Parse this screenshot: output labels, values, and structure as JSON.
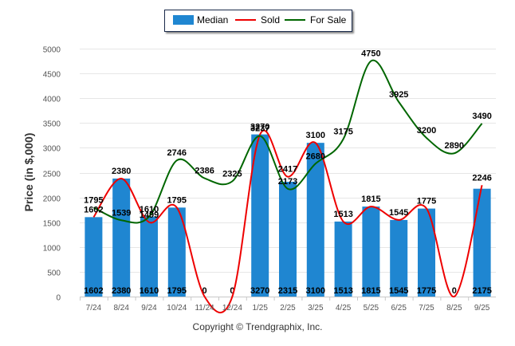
{
  "chart_data": {
    "type": "bar",
    "title": "",
    "xlabel": "",
    "ylabel": "Price (in $,000)",
    "ylim": [
      0,
      5000
    ],
    "yticks": [
      0,
      500,
      1000,
      1500,
      2000,
      2500,
      3000,
      3500,
      4000,
      4500,
      5000
    ],
    "grid": true,
    "legend_position": "top-center",
    "categories": [
      "7/24",
      "8/24",
      "9/24",
      "10/24",
      "11/24",
      "12/24",
      "1/25",
      "2/25",
      "3/25",
      "4/25",
      "5/25",
      "6/25",
      "7/25",
      "8/25",
      "9/25"
    ],
    "series": [
      {
        "name": "Median",
        "type": "bar",
        "color": "#1f86d1",
        "values": [
          1602,
          2380,
          1610,
          1795,
          0,
          0,
          3270,
          2315,
          3100,
          1513,
          1815,
          1545,
          1775,
          0,
          2175
        ]
      },
      {
        "name": "Sold",
        "type": "line",
        "color": "#ee0000",
        "values": [
          1602,
          2380,
          1499,
          1795,
          0,
          0,
          3270,
          2417,
          3100,
          1513,
          1815,
          1545,
          1775,
          0,
          2246
        ]
      },
      {
        "name": "For Sale",
        "type": "line",
        "color": "#006600",
        "values": [
          1795,
          1539,
          1610,
          2746,
          2386,
          2325,
          3237,
          2173,
          2680,
          3175,
          4750,
          3925,
          3200,
          2890,
          3490
        ]
      }
    ]
  },
  "legend": {
    "median": "Median",
    "sold": "Sold",
    "for_sale": "For Sale"
  },
  "footer": {
    "copyright": "Copyright © Trendgraphix, Inc."
  }
}
